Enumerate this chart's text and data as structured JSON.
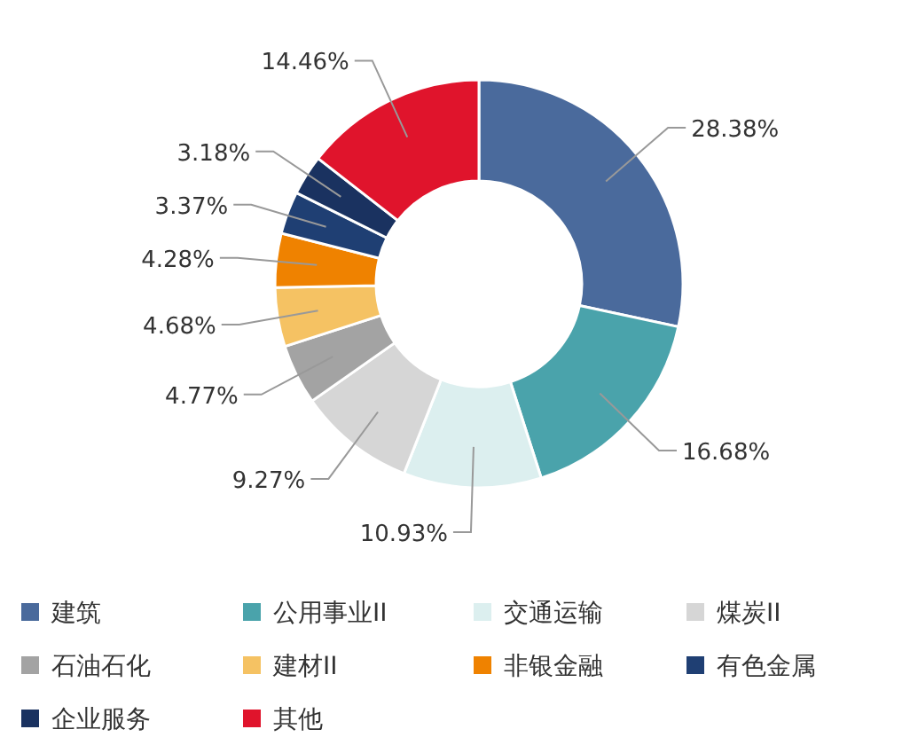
{
  "chart_data": {
    "type": "donut",
    "categories": [
      "建筑",
      "公用事业II",
      "交通运输",
      "煤炭II",
      "石油石化",
      "建材II",
      "非银金融",
      "有色金属",
      "企业服务",
      "其他"
    ],
    "values": [
      28.38,
      16.68,
      10.93,
      9.27,
      4.77,
      4.68,
      4.28,
      3.37,
      3.18,
      14.46
    ],
    "colors": [
      "#4a6a9c",
      "#4aa3ab",
      "#dcefef",
      "#d6d6d6",
      "#a3a3a3",
      "#f5c263",
      "#ef8200",
      "#1f3f73",
      "#1a3260",
      "#e0142c"
    ],
    "value_labels": [
      "28.38%",
      "16.68%",
      "10.93%",
      "9.27%",
      "4.77%",
      "4.68%",
      "4.28%",
      "3.37%",
      "3.18%",
      "14.46%"
    ],
    "legend": "bottom"
  }
}
